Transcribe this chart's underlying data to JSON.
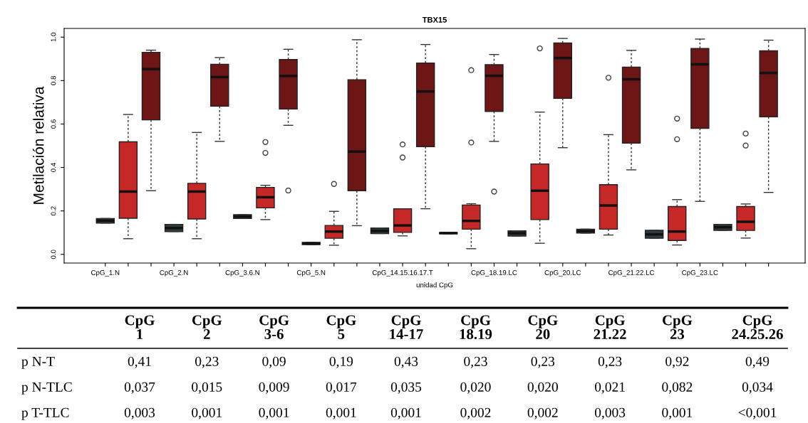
{
  "chart_data": {
    "type": "box",
    "title": "TBX15",
    "xlabel": "unidad CpG",
    "ylabel": "Metilación relativa",
    "categories": [
      "CpG_1.N",
      null,
      null,
      "CpG_2.N",
      null,
      null,
      "CpG_3.6.N",
      null,
      null,
      "CpG_5.N",
      null,
      null,
      null,
      "CpG_14.15.16.17.T",
      null,
      null,
      null,
      "CpG_18.19.LC",
      null,
      null,
      "CpG_20.LC",
      null,
      null,
      "CpG_21.22.LC",
      null,
      null,
      "CpG_23.LC",
      null,
      null,
      null
    ],
    "colors": [
      "#2f3b40",
      "#c62828",
      "#6e1616",
      "#2f3b40",
      "#c62828",
      "#6e1616",
      "#2f3b40",
      "#c62828",
      "#6e1616",
      "#2f3b40",
      "#c62828",
      "#6e1616",
      "#2f3b40",
      "#c62828",
      "#6e1616",
      "#2f3b40",
      "#c62828",
      "#6e1616",
      "#2f3b40",
      "#c62828",
      "#6e1616",
      "#2f3b40",
      "#c62828",
      "#6e1616",
      "#2f3b40",
      "#c62828",
      "#6e1616",
      "#2f3b40",
      "#c62828",
      "#6e1616"
    ],
    "boxes": [
      {
        "low": 0.144,
        "q1": 0.144,
        "median": 0.155,
        "q3": 0.165,
        "high": 0.165
      },
      {
        "low": 0.072,
        "q1": 0.166,
        "median": 0.289,
        "q3": 0.518,
        "high": 0.644
      },
      {
        "low": 0.293,
        "q1": 0.619,
        "median": 0.853,
        "q3": 0.93,
        "high": 0.94
      },
      {
        "low": 0.105,
        "q1": 0.105,
        "median": 0.121,
        "q3": 0.138,
        "high": 0.138
      },
      {
        "low": 0.072,
        "q1": 0.163,
        "median": 0.289,
        "q3": 0.327,
        "high": 0.561
      },
      {
        "low": 0.52,
        "q1": 0.682,
        "median": 0.816,
        "q3": 0.875,
        "high": 0.906
      },
      {
        "low": 0.165,
        "q1": 0.165,
        "median": 0.174,
        "q3": 0.183,
        "high": 0.183
      },
      {
        "low": 0.16,
        "q1": 0.214,
        "median": 0.263,
        "q3": 0.308,
        "high": 0.318,
        "outliers": [
          0.517,
          0.467
        ]
      },
      {
        "low": 0.594,
        "q1": 0.669,
        "median": 0.821,
        "q3": 0.897,
        "high": 0.944,
        "outliers": [
          0.294
        ]
      },
      {
        "low": 0.045,
        "q1": 0.045,
        "median": 0.05,
        "q3": 0.055,
        "high": 0.055
      },
      {
        "low": 0.042,
        "q1": 0.074,
        "median": 0.105,
        "q3": 0.133,
        "high": 0.198,
        "outliers": [
          0.324
        ]
      },
      {
        "low": 0.132,
        "q1": 0.293,
        "median": 0.473,
        "q3": 0.804,
        "high": 0.988
      },
      {
        "low": 0.096,
        "q1": 0.096,
        "median": 0.108,
        "q3": 0.121,
        "high": 0.121
      },
      {
        "low": 0.085,
        "q1": 0.101,
        "median": 0.133,
        "q3": 0.21,
        "high": 0.21,
        "outliers": [
          0.506,
          0.446
        ]
      },
      {
        "low": 0.21,
        "q1": 0.496,
        "median": 0.75,
        "q3": 0.881,
        "high": 0.966
      },
      {
        "low": 0.095,
        "q1": 0.095,
        "median": 0.098,
        "q3": 0.1,
        "high": 0.1
      },
      {
        "low": 0.026,
        "q1": 0.116,
        "median": 0.154,
        "q3": 0.227,
        "high": 0.233,
        "outliers": [
          0.848,
          0.515
        ]
      },
      {
        "low": 0.52,
        "q1": 0.658,
        "median": 0.822,
        "q3": 0.873,
        "high": 0.92,
        "outliers": [
          0.289
        ]
      },
      {
        "low": 0.084,
        "q1": 0.084,
        "median": 0.097,
        "q3": 0.108,
        "high": 0.108
      },
      {
        "low": 0.051,
        "q1": 0.16,
        "median": 0.293,
        "q3": 0.416,
        "high": 0.655,
        "outliers": [
          0.948
        ]
      },
      {
        "low": 0.491,
        "q1": 0.718,
        "median": 0.904,
        "q3": 0.973,
        "high": 0.994
      },
      {
        "low": 0.098,
        "q1": 0.098,
        "median": 0.107,
        "q3": 0.116,
        "high": 0.116
      },
      {
        "low": 0.089,
        "q1": 0.116,
        "median": 0.225,
        "q3": 0.321,
        "high": 0.551,
        "outliers": [
          0.813
        ]
      },
      {
        "low": 0.389,
        "q1": 0.512,
        "median": 0.806,
        "q3": 0.862,
        "high": 0.939
      },
      {
        "low": 0.074,
        "q1": 0.074,
        "median": 0.092,
        "q3": 0.111,
        "high": 0.111
      },
      {
        "low": 0.043,
        "q1": 0.064,
        "median": 0.105,
        "q3": 0.22,
        "high": 0.252,
        "outliers": [
          0.625,
          0.53
        ]
      },
      {
        "low": 0.244,
        "q1": 0.58,
        "median": 0.875,
        "q3": 0.948,
        "high": 0.991
      },
      {
        "low": 0.11,
        "q1": 0.11,
        "median": 0.125,
        "q3": 0.138,
        "high": 0.138
      },
      {
        "low": 0.075,
        "q1": 0.11,
        "median": 0.15,
        "q3": 0.22,
        "high": 0.232,
        "outliers": [
          0.556,
          0.501
        ]
      },
      {
        "low": 0.285,
        "q1": 0.633,
        "median": 0.835,
        "q3": 0.937,
        "high": 0.986
      }
    ],
    "ylim": [
      -0.04,
      1.04
    ],
    "yticks": [
      {
        "value": 0,
        "label": "0.0"
      },
      {
        "value": 0.2,
        "label": "0.2"
      },
      {
        "value": 0.4,
        "label": "0.4"
      },
      {
        "value": 0.6,
        "label": "0.6"
      },
      {
        "value": 0.8,
        "label": "0.8"
      },
      {
        "value": 1,
        "label": "1.0"
      }
    ],
    "grid": false,
    "annotations": [
      "CpG\n1",
      "CpG\n2",
      "CpG\n3-6",
      "CpG\n5",
      "CpG\n14-17",
      "CpG\n18.19",
      "CpG\n20",
      "CpG\n21.22",
      "CpG\n23",
      "CpG\n24.25.26",
      "p N-T",
      "0,41",
      "0,23",
      "0,09",
      "0,19",
      "0,43",
      "0,23",
      "0,23",
      "0,23",
      "0,92",
      "0,49",
      "p N-TLC",
      "0,037",
      "0,015",
      "0,009",
      "0,017",
      "0,035",
      "0,020",
      "0,020",
      "0,021",
      "0,082",
      "0,034",
      "p T-TLC",
      "0,003",
      "0,001",
      "0,001",
      "0,001",
      "0,001",
      "0,002",
      "0,002",
      "0,003",
      "0,001",
      "<0,001"
    ]
  }
}
